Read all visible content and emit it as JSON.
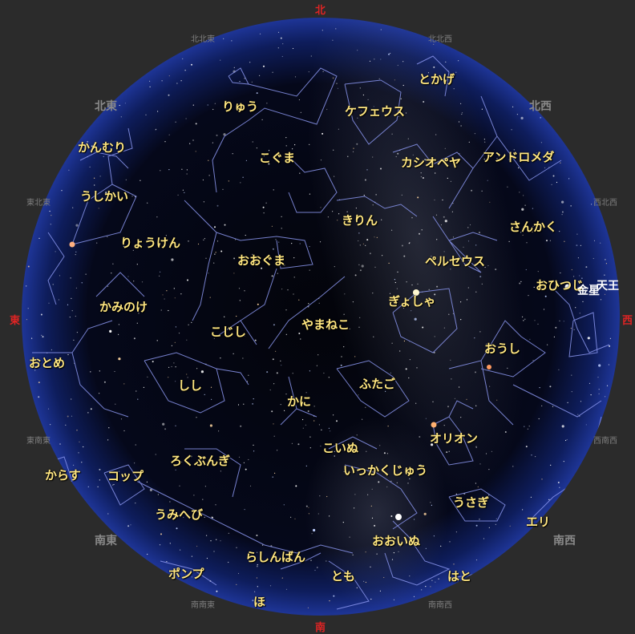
{
  "cardinals": {
    "north": "北",
    "east": "東",
    "south": "南",
    "west": "西"
  },
  "directions": {
    "nne": "北北東",
    "nnw": "北北西",
    "ne": "北東",
    "nw": "北西",
    "ene": "東北東",
    "wnw": "西北西",
    "ese": "東南東",
    "wsw": "西南西",
    "se": "南東",
    "sw": "南西",
    "sse": "南南東",
    "ssw": "南南西"
  },
  "constellations": {
    "togake": "とかげ",
    "ryu": "りゅう",
    "kefeusu": "ケフェウス",
    "kanmuri": "かんむり",
    "koguma": "こぐま",
    "kashiopeya": "カシオペヤ",
    "andoromeda": "アンドロメダ",
    "ushikai": "うしかい",
    "kirin": "きりん",
    "sankaku": "さんかく",
    "ryouken": "りょうけん",
    "ooguma": "おおぐま",
    "peruseusu": "ペルセウス",
    "ohitsuji": "おひつじ",
    "kaminoke": "かみのけ",
    "gyosha": "ぎょしゃ",
    "koshishi": "こじし",
    "yamaneko": "やまねこ",
    "oushi": "おうし",
    "otome": "おとめ",
    "shishi": "しし",
    "futago": "ふたご",
    "kani": "かに",
    "orion": "オリオン",
    "koinu": "こいぬ",
    "rokubungi": "ろくぶんぎ",
    "karasu": "からす",
    "koppu": "コップ",
    "ikkakujuu": "いっかくじゅう",
    "usagi": "うさぎ",
    "umihebi": "うみへび",
    "eri": "エリ",
    "ooinu": "おおいぬ",
    "rashinban": "らしんばん",
    "ponpu": "ポンプ",
    "tomo": "とも",
    "hato": "はと",
    "ho": "ほ"
  },
  "planets": {
    "kinsei": "金星",
    "tenno": "天王"
  },
  "colors": {
    "sky_edge": "#1a2f86",
    "sky_center": "#000000",
    "lines": "#8a96ee",
    "labels": "#ffe680",
    "cardinal": "#e02424",
    "background": "#2b2b2b"
  }
}
